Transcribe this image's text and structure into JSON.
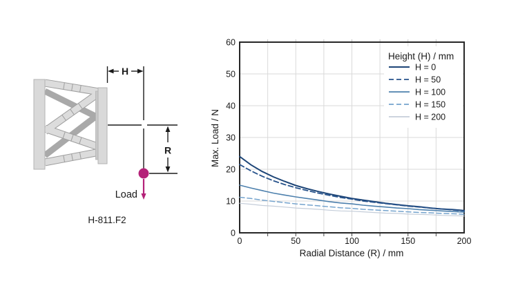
{
  "diagram": {
    "model_label": "H-811.F2",
    "dim_h_label": "H",
    "dim_r_label": "R",
    "load_label": "Load",
    "load_color": "#b42178",
    "plate_color": "#d9d9d9",
    "strut_light_color": "#dcdcdc",
    "strut_dark_color": "#a9a9a9",
    "line_color": "#1a1a1a"
  },
  "chart_data": {
    "type": "line",
    "title": "",
    "xlabel": "Radial Distance (R) / mm",
    "ylabel": "Max. Load / N",
    "xlim": [
      0,
      200
    ],
    "ylim": [
      0,
      60
    ],
    "x_tick_labels": [
      0,
      50,
      100,
      150,
      200
    ],
    "y_tick_labels": [
      0,
      10,
      20,
      30,
      40,
      50,
      60
    ],
    "x_grid_step": 25,
    "y_grid_step": 10,
    "grid": true,
    "grid_color": "#d9d9d9",
    "axis_color": "#262626",
    "legend": {
      "title": "Height (H) / mm",
      "position": "top-right-inside"
    },
    "x": [
      0,
      10,
      20,
      30,
      40,
      50,
      60,
      70,
      80,
      90,
      100,
      110,
      120,
      130,
      140,
      150,
      160,
      170,
      180,
      190,
      200
    ],
    "series": [
      {
        "name": "H = 0",
        "color": "#1d4577",
        "dash": "solid",
        "width": 2.0,
        "values": [
          24.0,
          21.4,
          19.3,
          17.6,
          16.2,
          14.9,
          13.9,
          13.0,
          12.2,
          11.5,
          10.8,
          10.3,
          9.8,
          9.3,
          8.9,
          8.5,
          8.2,
          7.8,
          7.5,
          7.3,
          7.0
        ]
      },
      {
        "name": "H = 50",
        "color": "#27538c",
        "dash": "dashed",
        "width": 1.8,
        "values": [
          21.5,
          19.5,
          17.8,
          16.4,
          15.2,
          14.2,
          13.3,
          12.5,
          11.8,
          11.1,
          10.6,
          10.0,
          9.6,
          9.2,
          8.8,
          8.4,
          8.1,
          7.8,
          7.5,
          7.2,
          6.9
        ]
      },
      {
        "name": "H = 100",
        "color": "#4d80ad",
        "dash": "solid",
        "width": 1.6,
        "values": [
          15.0,
          14.1,
          13.3,
          12.5,
          11.9,
          11.3,
          10.8,
          10.3,
          9.8,
          9.4,
          9.1,
          8.7,
          8.4,
          8.1,
          7.8,
          7.6,
          7.3,
          7.1,
          6.9,
          6.7,
          6.5
        ]
      },
      {
        "name": "H = 150",
        "color": "#74a3cd",
        "dash": "dashed",
        "width": 1.5,
        "values": [
          11.2,
          10.8,
          10.3,
          9.9,
          9.5,
          9.1,
          8.8,
          8.5,
          8.2,
          7.9,
          7.7,
          7.4,
          7.2,
          7.0,
          6.8,
          6.6,
          6.4,
          6.3,
          6.1,
          6.0,
          5.8
        ]
      },
      {
        "name": "H = 200",
        "color": "#c4cdd9",
        "dash": "solid",
        "width": 1.2,
        "values": [
          9.3,
          9.0,
          8.6,
          8.4,
          8.1,
          7.8,
          7.6,
          7.4,
          7.1,
          6.9,
          6.8,
          6.6,
          6.4,
          6.2,
          6.1,
          5.9,
          5.8,
          5.7,
          5.5,
          5.4,
          5.3
        ]
      }
    ]
  }
}
